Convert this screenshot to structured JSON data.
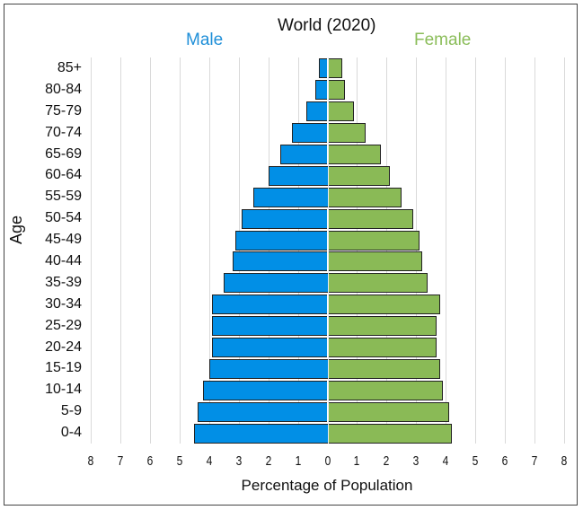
{
  "chart_data": {
    "type": "bar",
    "subtype": "population-pyramid",
    "title": "World (2020)",
    "xlabel": "Percentage of Population",
    "ylabel": "Age",
    "legend": [
      {
        "name": "Male",
        "color": "#1f8fd8"
      },
      {
        "name": "Female",
        "color": "#8bbd5a"
      }
    ],
    "legend_position": "top",
    "grid": true,
    "xlim": [
      -8,
      8
    ],
    "x_ticks": [
      "8",
      "7",
      "6",
      "5",
      "4",
      "3",
      "2",
      "1",
      "0",
      "1",
      "2",
      "3",
      "4",
      "5",
      "6",
      "7",
      "8"
    ],
    "categories": [
      "85+",
      "80-84",
      "75-79",
      "70-74",
      "65-69",
      "60-64",
      "55-59",
      "50-54",
      "45-49",
      "40-44",
      "35-39",
      "30-34",
      "25-29",
      "20-24",
      "15-19",
      "10-14",
      "5-9",
      "0-4"
    ],
    "series": [
      {
        "name": "Male",
        "color": "#018fe6",
        "values": [
          0.3,
          0.4,
          0.7,
          1.2,
          1.6,
          2.0,
          2.5,
          2.9,
          3.1,
          3.2,
          3.5,
          3.9,
          3.9,
          3.9,
          4.0,
          4.2,
          4.4,
          4.5
        ]
      },
      {
        "name": "Female",
        "color": "#8aba56",
        "values": [
          0.5,
          0.6,
          0.9,
          1.3,
          1.8,
          2.1,
          2.5,
          2.9,
          3.1,
          3.2,
          3.4,
          3.8,
          3.7,
          3.7,
          3.8,
          3.9,
          4.1,
          4.2
        ]
      }
    ]
  }
}
